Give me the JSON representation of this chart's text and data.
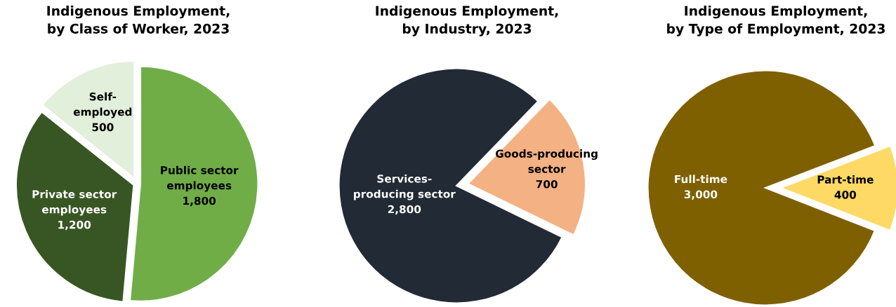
{
  "chart_data": [
    {
      "type": "pie",
      "title": "Indigenous Employment,\nby Class of Worker, 2023",
      "categories": [
        "Public sector\nemployees",
        "Private sector\nemployees",
        "Self-\nemployed"
      ],
      "values": [
        1800,
        1200,
        500
      ],
      "colors": [
        "#70ad47",
        "#375623",
        "#e2efda"
      ],
      "value_labels": [
        "1,800",
        "1,200",
        "500"
      ]
    },
    {
      "type": "pie",
      "title": "Indigenous Employment,\nby Industry, 2023",
      "categories": [
        "Services-\nproducing sector",
        "Goods-producing\nsector"
      ],
      "values": [
        2800,
        700
      ],
      "colors": [
        "#222a35",
        "#f4b183"
      ],
      "value_labels": [
        "2,800",
        "700"
      ]
    },
    {
      "type": "pie",
      "title": "Indigenous Employment,\nby Type of Employment, 2023",
      "categories": [
        "Full-time",
        "Part-time"
      ],
      "values": [
        3000,
        400
      ],
      "colors": [
        "#7f6000",
        "#ffd966"
      ],
      "value_labels": [
        "3,000",
        "400"
      ]
    }
  ]
}
